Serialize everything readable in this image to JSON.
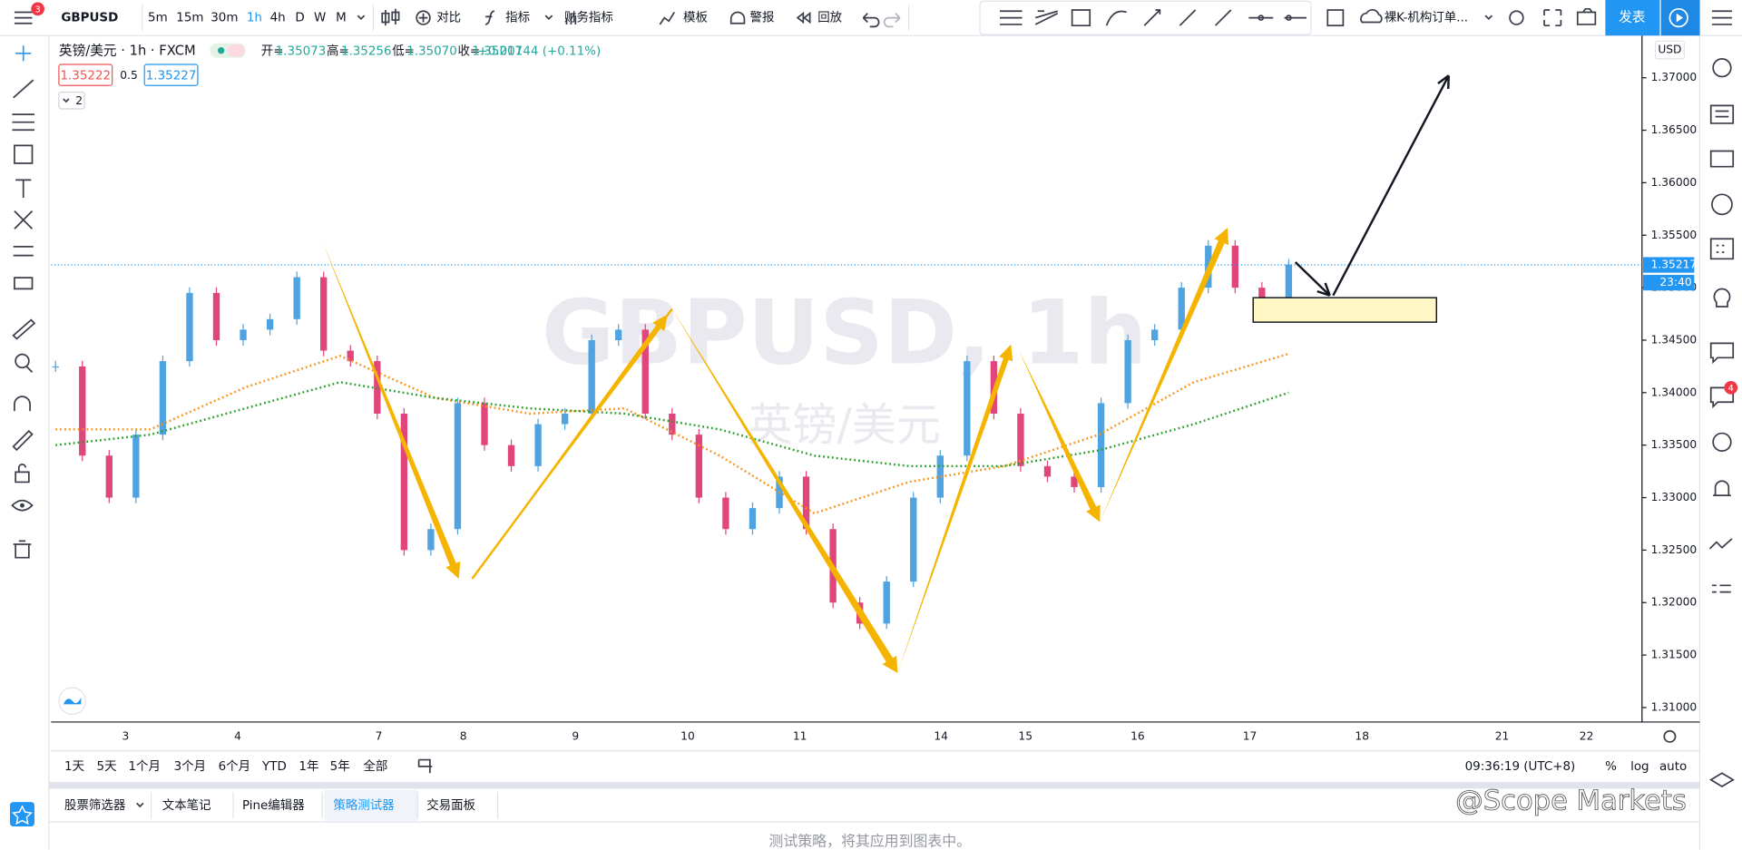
{
  "toolbar": {
    "symbol": "GBPUSD",
    "menu_badge": "3",
    "intervals": [
      "5m",
      "15m",
      "30m",
      "1h",
      "4h",
      "D",
      "W",
      "M"
    ],
    "active_interval": 3,
    "buttons": [
      "对比",
      "指标",
      "财务指标",
      "模板",
      "警报",
      "回放"
    ],
    "template": "裸K-机构订单...",
    "publish": "发表"
  },
  "legend": {
    "title": "英镑/美元 · 1h · FXCM",
    "ohlc": [
      {
        "label": "开=",
        "value": "1.35073"
      },
      {
        "label": "高=",
        "value": "1.35256"
      },
      {
        "label": "低=",
        "value": "1.35070"
      },
      {
        "label": "收=",
        "value": "1.35217"
      }
    ],
    "change": "+0.00144 (+0.11%)",
    "sell": "1.35222",
    "spread": "0.5",
    "buy": "1.35227",
    "indicators": "2"
  },
  "watermark": {
    "symbol": "GBPUSD, 1h",
    "name": "英镑/美元"
  },
  "chart_data": {
    "type": "candlestick",
    "currency": "USD",
    "ylim": [
      1.30862,
      1.37402
    ],
    "yticks": [
      {
        "value": 1.37,
        "label": "1.37000"
      },
      {
        "value": 1.365,
        "label": "1.36500"
      },
      {
        "value": 1.36,
        "label": "1.36000"
      },
      {
        "value": 1.355,
        "label": "1.35500"
      },
      {
        "value": 1.35,
        "label": "1.35000"
      },
      {
        "value": 1.345,
        "label": "1.34500"
      },
      {
        "value": 1.34,
        "label": "1.34000"
      },
      {
        "value": 1.335,
        "label": "1.33500"
      },
      {
        "value": 1.33,
        "label": "1.33000"
      },
      {
        "value": 1.325,
        "label": "1.32500"
      },
      {
        "value": 1.32,
        "label": "1.32000"
      },
      {
        "value": 1.315,
        "label": "1.31500"
      },
      {
        "value": 1.31,
        "label": "1.31000"
      }
    ],
    "x_labels": [
      "3",
      "4",
      "7",
      "8",
      "9",
      "10",
      "11",
      "14",
      "15",
      "16",
      "17",
      "18",
      "21",
      "22"
    ],
    "up_color": "#4ea3e0",
    "down_color": "#e0457b",
    "closes": [
      1.3425,
      1.334,
      1.33,
      1.336,
      1.343,
      1.3495,
      1.345,
      1.346,
      1.347,
      1.351,
      1.344,
      1.343,
      1.338,
      1.325,
      1.327,
      1.339,
      1.335,
      1.333,
      1.337,
      1.338,
      1.345,
      1.346,
      1.338,
      1.336,
      1.33,
      1.327,
      1.329,
      1.332,
      1.327,
      1.32,
      1.318,
      1.322,
      1.33,
      1.334,
      1.343,
      1.338,
      1.333,
      1.332,
      1.331,
      1.339,
      1.345,
      1.346,
      1.35,
      1.354,
      1.35,
      1.348,
      1.3522
    ],
    "ma_lines": [
      {
        "color": "#f7931a",
        "values": [
          1.3365,
          1.3365,
          1.3405,
          1.3435,
          1.3395,
          1.338,
          1.3385,
          1.334,
          1.3285,
          1.3315,
          1.333,
          1.336,
          1.341,
          1.3437
        ]
      },
      {
        "color": "#2ca02c",
        "values": [
          1.335,
          1.336,
          1.3385,
          1.341,
          1.3395,
          1.3385,
          1.338,
          1.3365,
          1.334,
          1.333,
          1.333,
          1.3345,
          1.337,
          1.34
        ]
      }
    ],
    "last_price": 1.35217,
    "last_price_color": "#2196f3",
    "countdown": "23:40"
  },
  "range_bar": {
    "ranges": [
      "1天",
      "5天",
      "1个月",
      "3个月",
      "6个月",
      "YTD",
      "1年",
      "5年",
      "全部"
    ],
    "time": "09:36:19 (UTC+8)",
    "options": [
      "%",
      "log",
      "auto"
    ]
  },
  "tabs": {
    "items": [
      "股票筛选器",
      "文本笔记",
      "Pine编辑器",
      "策略测试器",
      "交易面板"
    ],
    "active": 3
  },
  "panel": {
    "message": "测试策略，将其应用到图表中。"
  },
  "alerts_badge": "4",
  "credit": "@Scope Markets"
}
